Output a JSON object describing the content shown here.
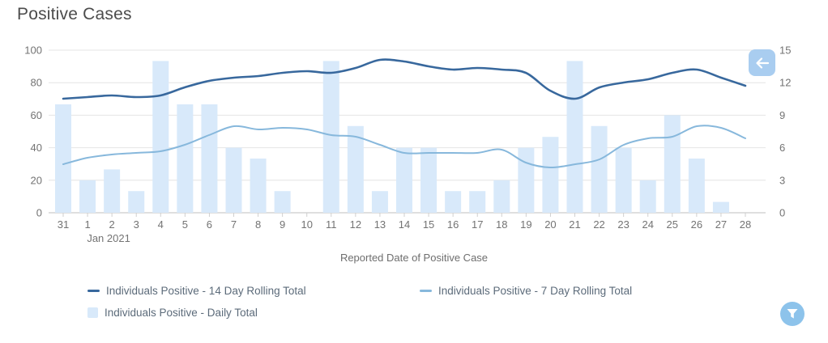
{
  "title": "Positive Cases",
  "chart_data": {
    "type": "combo",
    "title": "Positive Cases",
    "xlabel": "Reported Date of Positive Case",
    "categories": [
      "31",
      "1",
      "2",
      "3",
      "4",
      "5",
      "6",
      "7",
      "8",
      "9",
      "10",
      "11",
      "12",
      "13",
      "14",
      "15",
      "16",
      "17",
      "18",
      "19",
      "20",
      "21",
      "22",
      "23",
      "24",
      "25",
      "26",
      "27",
      "28"
    ],
    "month_annotation": {
      "label": "Jan 2021",
      "under_category": "1"
    },
    "y_axis_left": {
      "min": 0,
      "max": 100,
      "step": 20,
      "ticks": [
        0,
        20,
        40,
        60,
        80,
        100
      ]
    },
    "y_axis_right": {
      "min": 0,
      "max": 15,
      "step": 3,
      "ticks": [
        0,
        3,
        6,
        9,
        12,
        15
      ]
    },
    "grid": true,
    "legend_position": "bottom",
    "series": [
      {
        "id": "daily-total",
        "name": "Individuals Positive - Daily Total",
        "type": "bar",
        "y_axis": "right",
        "color": "#d8e9fa",
        "values": [
          10,
          3,
          4,
          2,
          14,
          10,
          10,
          6,
          5,
          2,
          0,
          14,
          8,
          2,
          6,
          6,
          2,
          2,
          3,
          6,
          7,
          14,
          8,
          6,
          3,
          9,
          5,
          1,
          0
        ]
      },
      {
        "id": "rolling-14day",
        "name": "Individuals Positive - 14 Day Rolling Total",
        "type": "line",
        "y_axis": "left",
        "color": "#38689d",
        "stroke_width": 2.6,
        "values": [
          70,
          71,
          72,
          71,
          72,
          77,
          81,
          83,
          84,
          86,
          87,
          86,
          89,
          94,
          93,
          90,
          88,
          89,
          88,
          86,
          75,
          70,
          77,
          80,
          82,
          86,
          88,
          83,
          78
        ]
      },
      {
        "id": "rolling-7day",
        "name": "Individuals Positive - 7 Day Rolling Total",
        "type": "line",
        "y_axis": "left",
        "color": "#87b8dc",
        "stroke_width": 2,
        "values": [
          30,
          34,
          36,
          37,
          38,
          42,
          48,
          53,
          51,
          52,
          51,
          48,
          47,
          42,
          37,
          37,
          37,
          37,
          39,
          31,
          28,
          30,
          33,
          42,
          46,
          47,
          53,
          52,
          46
        ]
      }
    ]
  },
  "legend": [
    {
      "label": "Individuals Positive - 14 Day Rolling Total",
      "swatch": "line",
      "color": "#38689d"
    },
    {
      "label": "Individuals Positive - 7 Day Rolling Total",
      "swatch": "line",
      "color": "#87b8dc"
    },
    {
      "label": "Individuals Positive - Daily Total",
      "swatch": "square",
      "color": "#d8e9fa"
    }
  ],
  "buttons": {
    "back": {
      "icon": "left-arrow",
      "background": "#a9cdf0"
    },
    "filter": {
      "icon": "funnel",
      "background": "#8dc3eb"
    }
  },
  "theme": {
    "grid_color": "#e4e4e4",
    "axis_line_color": "#bfbfbf",
    "tick_color": "#cfcfcf",
    "tick_text_color": "#737373",
    "title_color": "#4c4c4c",
    "axis_title_color": "#6e6e6e",
    "legend_text_color": "#5c6b7a"
  }
}
